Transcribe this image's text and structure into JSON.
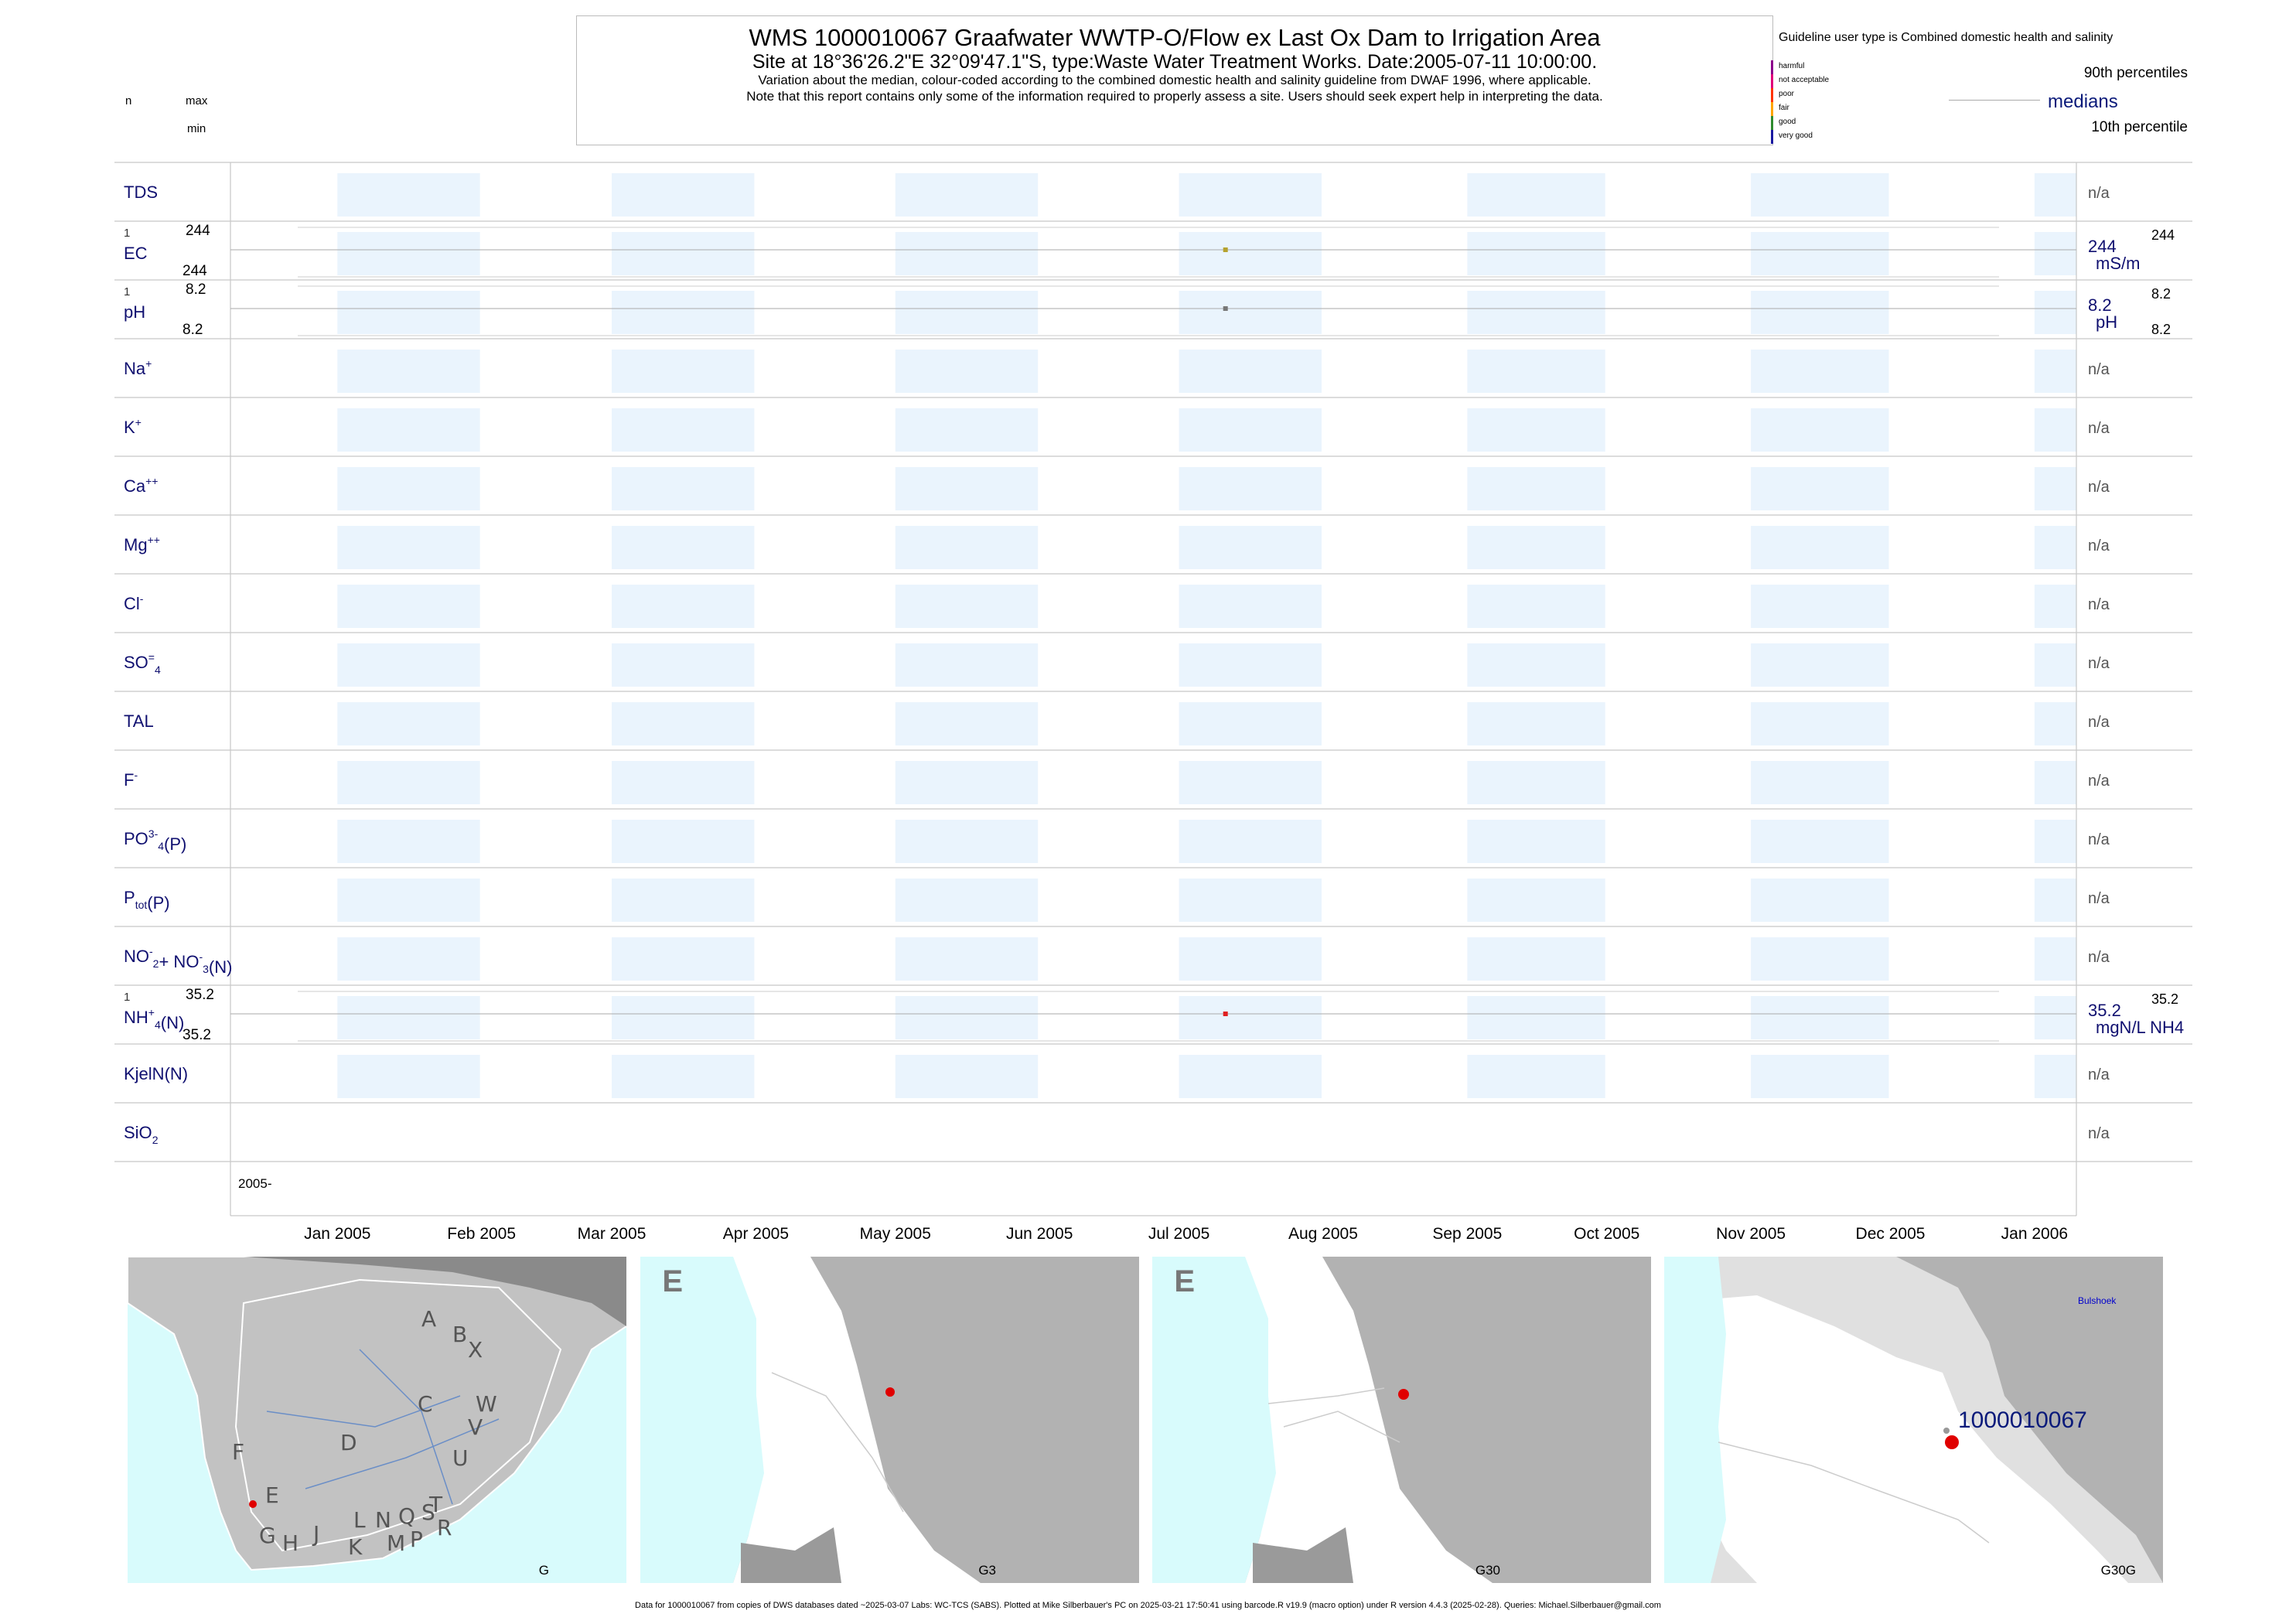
{
  "header": {
    "title": "WMS 1000010067  Graafwater WWTP-O/Flow ex Last Ox Dam to Irrigation Area",
    "subtitle": "Site at 18°36'26.2\"E 32°09'47.1\"S, type:Waste Water Treatment Works. Date:2005-07-11 10:00:00.",
    "note1": "Variation about the median,  colour-coded according to the combined domestic health and salinity guideline from DWAF 1996, where applicable.",
    "note2": "Note that this report contains only some of the information required to properly assess a site. Users should seek expert help in interpreting the data.",
    "n_label": "n",
    "max_label": "max",
    "min_label": "min"
  },
  "legend": {
    "guideline": "Guideline user type is Combined domestic health and salinity",
    "levels": [
      {
        "label": "harmful",
        "color": "#8b008b"
      },
      {
        "label": "not acceptable",
        "color": "#e0007a"
      },
      {
        "label": "poor",
        "color": "#ff3300"
      },
      {
        "label": "fair",
        "color": "#ffa500"
      },
      {
        "label": "good",
        "color": "#2e8b2e"
      },
      {
        "label": "very good",
        "color": "#1a1aa0"
      }
    ],
    "p90": "90th percentiles",
    "medians": "medians",
    "p10": "10th percentile"
  },
  "chart_data": {
    "type": "scatter",
    "x_axis": {
      "range": [
        "2004-12-09",
        "2006-01-10"
      ],
      "ticks": [
        "Jan 2005",
        "Feb 2005",
        "Mar 2005",
        "Apr 2005",
        "May 2005",
        "Jun 2005",
        "Jul 2005",
        "Aug 2005",
        "Sep 2005",
        "Oct 2005",
        "Nov 2005",
        "Dec 2005",
        "Jan 2006"
      ],
      "year_label": "2005-"
    },
    "rows": [
      {
        "id": "tds",
        "label": "TDS",
        "right": "n/a"
      },
      {
        "id": "ec",
        "label": "EC",
        "n": "1",
        "max": "244",
        "min": "244",
        "median": "244",
        "unit": "mS/m",
        "p90": "244",
        "point": {
          "date": "2005-07-11",
          "value": 244
        },
        "color": "#b5a22e"
      },
      {
        "id": "ph",
        "label": "pH",
        "n": "1",
        "max": "8.2",
        "min": "8.2",
        "median": "8.2",
        "unit": "pH",
        "p90": "8.2",
        "p10": "8.2",
        "point": {
          "date": "2005-07-11",
          "value": 8.2
        },
        "color": "#777777"
      },
      {
        "id": "na",
        "label": "Na",
        "sup": "+",
        "right": "n/a"
      },
      {
        "id": "k",
        "label": "K",
        "sup": "+",
        "right": "n/a"
      },
      {
        "id": "ca",
        "label": "Ca",
        "sup": "++",
        "right": "n/a"
      },
      {
        "id": "mg",
        "label": "Mg",
        "sup": "++",
        "right": "n/a"
      },
      {
        "id": "cl",
        "label": "Cl",
        "sup": "-",
        "right": "n/a"
      },
      {
        "id": "so4",
        "label": "SO",
        "sub": "4",
        "sup": "=",
        "right": "n/a"
      },
      {
        "id": "tal",
        "label": "TAL",
        "right": "n/a"
      },
      {
        "id": "f",
        "label": "F",
        "sup": "-",
        "right": "n/a"
      },
      {
        "id": "po4",
        "label": "PO",
        "sub": "4",
        "sup": "3-",
        "after": "(P)",
        "right": "n/a"
      },
      {
        "id": "ptot",
        "label": "P",
        "sub": "tot",
        "after": "(P)",
        "right": "n/a"
      },
      {
        "id": "nox",
        "label": "NO",
        "sup": "-",
        "sub": "2",
        "after": "+ NO",
        "sup2": "-",
        "sub2": "3",
        "after2": "(N)",
        "right": "n/a"
      },
      {
        "id": "nh4",
        "label": "NH",
        "sup": "+",
        "sub": "4",
        "after": "(N)",
        "n": "1",
        "max": "35.2",
        "min": "35.2",
        "median": "35.2",
        "unit": "mgN/L NH4",
        "p90": "35.2",
        "point": {
          "date": "2005-07-11",
          "value": 35.2
        },
        "color": "#e02020"
      },
      {
        "id": "kjel",
        "label": "KjelN(N)",
        "right": "n/a"
      },
      {
        "id": "sio2",
        "label": "SiO",
        "sub": "2",
        "right": "n/a"
      }
    ]
  },
  "maps": [
    {
      "label": "G",
      "letters": [
        "A",
        "B",
        "X",
        "W",
        "C",
        "D",
        "V",
        "U",
        "F",
        "T",
        "E",
        "S",
        "R",
        "Q",
        "N",
        "L",
        "P",
        "M",
        "J",
        "K",
        "H",
        "G"
      ]
    },
    {
      "label": "G3",
      "corner": "E"
    },
    {
      "label": "G30",
      "corner": "E"
    },
    {
      "label": "G30G",
      "site": "1000010067",
      "place": "Bulshoek"
    }
  ],
  "footer": "Data for 1000010067 from copies of DWS databases dated ~2025-03-07 Labs: WC-TCS (SABS). Plotted at Mike Silberbauer's PC on 2025-03-21 17:50:41 using barcode.R v19.9 (macro option) under R version 4.4.3 (2025-02-28). Queries: Michael.Silberbauer@gmail.com"
}
